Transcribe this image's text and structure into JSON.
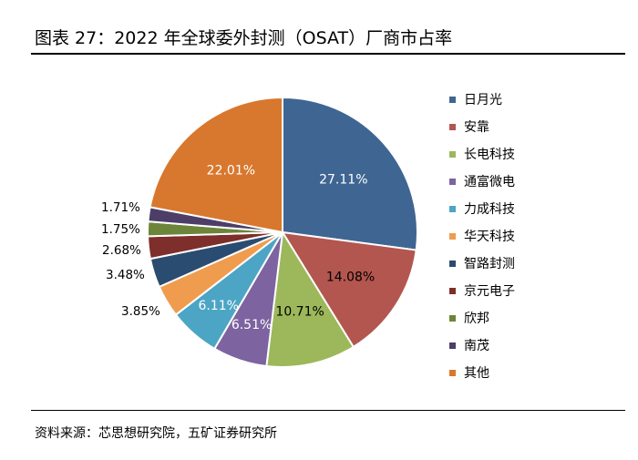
{
  "page": {
    "title": "图表 27：2022 年全球委外封测（OSAT）厂商市占率",
    "source": "资料来源：芯思想研究院，五矿证券研究所"
  },
  "chart_data": {
    "type": "pie",
    "title": "2022 年全球委外封测（OSAT）厂商市占率",
    "categories": [
      "日月光",
      "安靠",
      "长电科技",
      "通富微电",
      "力成科技",
      "华天科技",
      "智路封测",
      "京元电子",
      "欣邦",
      "南茂",
      "其他"
    ],
    "values": [
      27.11,
      14.08,
      10.71,
      6.51,
      6.11,
      3.85,
      3.48,
      2.68,
      1.75,
      1.71,
      22.01
    ],
    "labels": [
      "27.11%",
      "14.08%",
      "10.71%",
      "6.51%",
      "6.11%",
      "3.85%",
      "3.48%",
      "2.68%",
      "1.75%",
      "1.71%",
      "22.01%"
    ],
    "colors": [
      "#3F6592",
      "#B3564F",
      "#9CB85A",
      "#7D63A0",
      "#4CA5C4",
      "#EF9C4F",
      "#2A4C70",
      "#7E2E2B",
      "#6C853A",
      "#4D3E68",
      "#D8782E"
    ],
    "legend_position": "right"
  }
}
